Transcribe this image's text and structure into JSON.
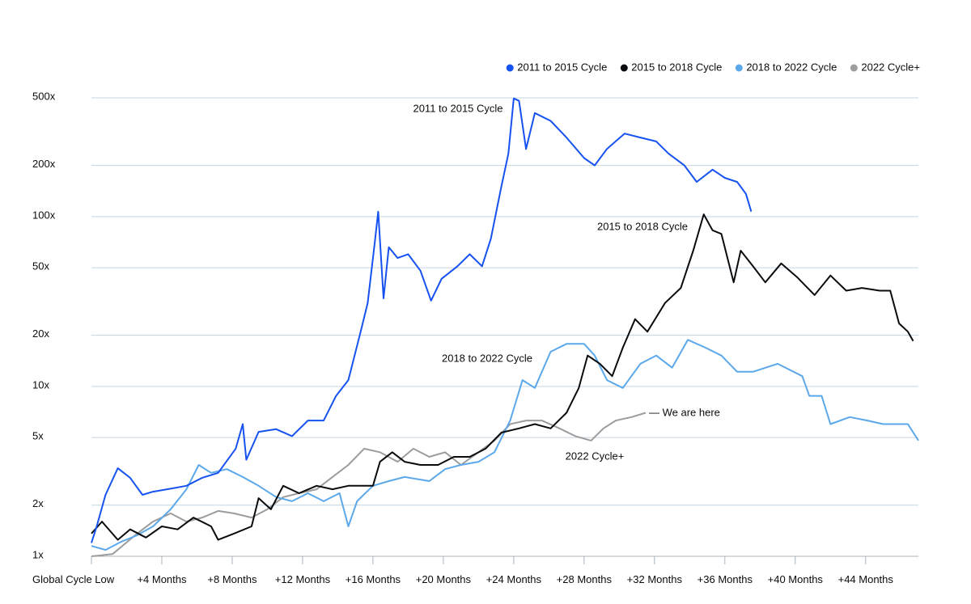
{
  "chart_data": {
    "type": "line",
    "log_y": true,
    "grid": true,
    "legend_position": "top-right",
    "xlim": [
      0,
      47
    ],
    "ylim": [
      1,
      500
    ],
    "xticks": [
      {
        "value": 0,
        "label": "Global Cycle Low"
      },
      {
        "value": 4,
        "label": "+4 Months"
      },
      {
        "value": 8,
        "label": "+8 Months"
      },
      {
        "value": 12,
        "label": "+12 Months"
      },
      {
        "value": 16,
        "label": "+16 Months"
      },
      {
        "value": 20,
        "label": "+20 Months"
      },
      {
        "value": 24,
        "label": "+24 Months"
      },
      {
        "value": 28,
        "label": "+28 Months"
      },
      {
        "value": 32,
        "label": "+32 Months"
      },
      {
        "value": 36,
        "label": "+36 Months"
      },
      {
        "value": 40,
        "label": "+40 Months"
      },
      {
        "value": 44,
        "label": "+44 Months"
      }
    ],
    "yticks": [
      {
        "value": 1,
        "label": "1x"
      },
      {
        "value": 2,
        "label": "2x"
      },
      {
        "value": 5,
        "label": "5x"
      },
      {
        "value": 10,
        "label": "10x"
      },
      {
        "value": 20,
        "label": "20x"
      },
      {
        "value": 50,
        "label": "50x"
      },
      {
        "value": 100,
        "label": "100x"
      },
      {
        "value": 200,
        "label": "200x"
      },
      {
        "value": 500,
        "label": "500x"
      }
    ],
    "annotations": [
      "2011 to 2015 Cycle",
      "2015 to 2018 Cycle",
      "2018 to 2022 Cycle",
      "2022 Cycle+",
      "— We are here"
    ],
    "series": [
      {
        "name": "2011 to 2015 Cycle",
        "color": "#1652f0",
        "x": [
          0,
          0.3,
          0.8,
          1.5,
          2.2,
          2.9,
          3.5,
          4.5,
          5.4,
          6.3,
          7.2,
          8.2,
          8.6,
          8.8,
          9.5,
          10.5,
          11.4,
          12.3,
          13.2,
          13.9,
          14.6,
          15.3,
          15.7,
          16.1,
          16.3,
          16.6,
          16.9,
          17.4,
          18.0,
          18.7,
          19.3,
          19.9,
          20.8,
          21.5,
          22.2,
          22.7,
          23.3,
          23.7,
          24.0,
          24.3,
          24.7,
          25.2,
          26.1,
          27.0,
          28.0,
          28.6,
          29.3,
          30.3,
          31.2,
          32.1,
          32.8,
          33.7,
          34.4,
          35.3,
          36.0,
          36.7,
          37.2,
          37.5
        ],
        "values": [
          1.2,
          1.5,
          2.3,
          3.3,
          2.9,
          2.3,
          2.4,
          2.5,
          2.6,
          2.9,
          3.1,
          4.3,
          6.0,
          3.7,
          5.4,
          5.6,
          5.1,
          6.3,
          6.3,
          8.8,
          10.9,
          21,
          31,
          70,
          107,
          33,
          66,
          57,
          60,
          48,
          32,
          43,
          51,
          60,
          51,
          74,
          151,
          235,
          496,
          480,
          250,
          407,
          366,
          292,
          221,
          200,
          250,
          308,
          292,
          277,
          235,
          200,
          160,
          189,
          169,
          160,
          136,
          107
        ]
      },
      {
        "name": "2015 to 2018 Cycle",
        "color": "#0a0b0d",
        "x": [
          0,
          0.6,
          1.5,
          2.2,
          3.1,
          4.0,
          4.9,
          5.8,
          6.8,
          7.2,
          8.1,
          9.1,
          9.5,
          10.2,
          10.9,
          11.8,
          12.8,
          13.7,
          14.6,
          16.0,
          16.4,
          17.1,
          17.8,
          18.7,
          19.7,
          20.6,
          21.5,
          22.4,
          23.3,
          24.3,
          25.2,
          26.1,
          27.0,
          27.7,
          28.2,
          28.9,
          29.6,
          30.2,
          30.9,
          31.6,
          32.6,
          33.5,
          34.2,
          34.8,
          35.3,
          35.8,
          36.5,
          36.9,
          37.6,
          38.3,
          39.2,
          40.1,
          41.1,
          42.0,
          42.9,
          43.8,
          44.8,
          45.4,
          45.9,
          46.4,
          46.7
        ],
        "values": [
          1.36,
          1.6,
          1.25,
          1.44,
          1.29,
          1.5,
          1.44,
          1.69,
          1.5,
          1.25,
          1.36,
          1.5,
          2.2,
          1.89,
          2.6,
          2.35,
          2.6,
          2.48,
          2.6,
          2.6,
          3.6,
          4.1,
          3.6,
          3.45,
          3.45,
          3.85,
          3.85,
          4.3,
          5.35,
          5.66,
          6.0,
          5.66,
          7.0,
          9.8,
          15.2,
          13.6,
          11.5,
          16.9,
          24.9,
          21,
          31,
          38,
          63,
          103,
          83,
          79,
          41,
          63,
          51,
          41,
          53,
          44,
          34.5,
          45,
          36.6,
          38,
          36.6,
          36.6,
          23.5,
          21,
          18.5
        ]
      },
      {
        "name": "2018 to 2022 Cycle",
        "color": "#5ba8ea",
        "x": [
          0,
          0.8,
          1.7,
          2.6,
          3.5,
          4.5,
          5.4,
          6.1,
          6.8,
          7.7,
          8.6,
          9.5,
          10.5,
          11.4,
          12.3,
          13.2,
          14.1,
          14.6,
          15.1,
          16.0,
          16.9,
          17.8,
          19.2,
          20.1,
          21.0,
          22.0,
          22.9,
          23.8,
          24.5,
          25.2,
          26.1,
          27.0,
          28.0,
          28.6,
          29.3,
          30.2,
          31.2,
          32.1,
          33.0,
          33.9,
          34.9,
          35.8,
          36.7,
          37.6,
          39.0,
          40.4,
          40.8,
          41.5,
          42.0,
          43.1,
          44.1,
          45.0,
          46.4,
          47.0
        ],
        "values": [
          1.15,
          1.09,
          1.22,
          1.33,
          1.5,
          1.89,
          2.48,
          3.45,
          3.1,
          3.26,
          2.93,
          2.6,
          2.23,
          2.11,
          2.35,
          2.11,
          2.35,
          1.5,
          2.11,
          2.6,
          2.77,
          2.93,
          2.77,
          3.26,
          3.45,
          3.6,
          4.1,
          6.3,
          10.9,
          9.8,
          16.0,
          17.8,
          17.8,
          15.2,
          10.9,
          9.8,
          13.6,
          15.2,
          12.9,
          18.8,
          16.9,
          15.2,
          12.2,
          12.2,
          13.6,
          11.5,
          8.8,
          8.8,
          6.0,
          6.6,
          6.3,
          6.0,
          6.0,
          4.8
        ]
      },
      {
        "name": "2022 Cycle+",
        "color": "#9c9c9c",
        "x": [
          0,
          1.2,
          2.6,
          3.5,
          4.5,
          5.4,
          6.3,
          7.2,
          8.1,
          9.1,
          10.0,
          10.9,
          11.8,
          12.8,
          13.7,
          14.6,
          15.5,
          16.4,
          17.4,
          18.3,
          19.2,
          20.1,
          21.0,
          22.0,
          22.9,
          23.8,
          24.7,
          25.6,
          26.6,
          27.5,
          28.4,
          29.1,
          29.8,
          30.7,
          31.5
        ],
        "values": [
          1.0,
          1.03,
          1.36,
          1.6,
          1.79,
          1.6,
          1.69,
          1.85,
          1.79,
          1.69,
          1.89,
          2.23,
          2.35,
          2.48,
          2.93,
          3.45,
          4.3,
          4.1,
          3.6,
          4.3,
          3.85,
          4.1,
          3.45,
          4.1,
          4.8,
          6.0,
          6.3,
          6.3,
          5.66,
          5.1,
          4.8,
          5.66,
          6.3,
          6.6,
          7.0
        ]
      }
    ]
  }
}
